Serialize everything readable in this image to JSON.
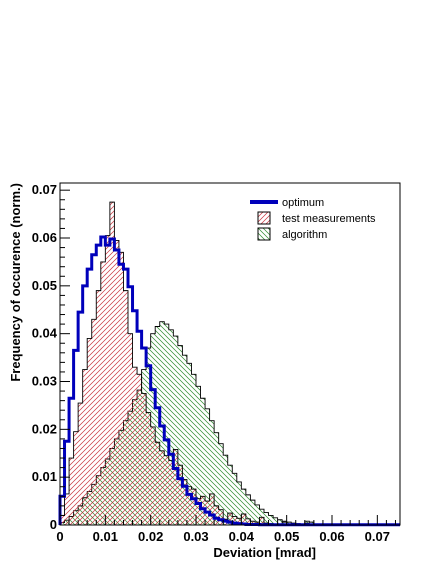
{
  "chart_data": {
    "type": "histogram",
    "xlabel": "Deviation [mrad]",
    "ylabel": "Frequency of occurence (norm.)",
    "xlim": [
      0,
      0.075
    ],
    "ylim": [
      0,
      0.0715
    ],
    "bin_width": 0.001,
    "x_ticks": [
      {
        "value": 0,
        "label": "0"
      },
      {
        "value": 0.01,
        "label": "0.01"
      },
      {
        "value": 0.02,
        "label": "0.02"
      },
      {
        "value": 0.03,
        "label": "0.03"
      },
      {
        "value": 0.04,
        "label": "0.04"
      },
      {
        "value": 0.05,
        "label": "0.05"
      },
      {
        "value": 0.06,
        "label": "0.06"
      },
      {
        "value": 0.07,
        "label": "0.07"
      }
    ],
    "y_ticks": [
      {
        "value": 0,
        "label": "0"
      },
      {
        "value": 0.01,
        "label": "0.01"
      },
      {
        "value": 0.02,
        "label": "0.02"
      },
      {
        "value": 0.03,
        "label": "0.03"
      },
      {
        "value": 0.04,
        "label": "0.04"
      },
      {
        "value": 0.05,
        "label": "0.05"
      },
      {
        "value": 0.06,
        "label": "0.06"
      },
      {
        "value": 0.07,
        "label": "0.07"
      }
    ],
    "legend": {
      "position": "top-right"
    },
    "grid": false,
    "series": [
      {
        "name": "algorithm",
        "style": "hatched-histogram",
        "hatch": "diagonal-down",
        "hatch_color": "#2e8b2e",
        "values": [
          0.0005,
          0.001,
          0.0018,
          0.003,
          0.004,
          0.0057,
          0.007,
          0.0085,
          0.0103,
          0.012,
          0.0138,
          0.016,
          0.018,
          0.0198,
          0.0218,
          0.0238,
          0.0262,
          0.0282,
          0.0325,
          0.037,
          0.04,
          0.0415,
          0.0425,
          0.042,
          0.0408,
          0.0395,
          0.0375,
          0.0355,
          0.0338,
          0.0315,
          0.029,
          0.0265,
          0.0243,
          0.0218,
          0.0193,
          0.017,
          0.0146,
          0.0125,
          0.0108,
          0.009,
          0.0075,
          0.0063,
          0.0052,
          0.0042,
          0.0033,
          0.0026,
          0.002,
          0.0015,
          0.0011,
          0.0008,
          0.0006,
          0.0004,
          0.0003,
          0.0002,
          0.0008,
          0.0006,
          0.0002,
          0.0001
        ]
      },
      {
        "name": "test measurements",
        "style": "hatched-histogram",
        "hatch": "diagonal-up",
        "hatch_color": "#c8323c",
        "values": [
          0.002,
          0.0065,
          0.014,
          0.0195,
          0.0255,
          0.0325,
          0.039,
          0.043,
          0.049,
          0.055,
          0.0605,
          0.0675,
          0.0595,
          0.057,
          0.049,
          0.04,
          0.033,
          0.0315,
          0.0275,
          0.0235,
          0.0205,
          0.0173,
          0.0155,
          0.0145,
          0.0135,
          0.0158,
          0.0125,
          0.0095,
          0.008,
          0.0075,
          0.0055,
          0.006,
          0.005,
          0.0065,
          0.004,
          0.0032,
          0.0012,
          0.0025,
          0.0018,
          0.0014,
          0.0023,
          0.0013,
          0.0008,
          0.0006,
          0.0016,
          0.0004,
          0.0003,
          0.0002,
          0.0001,
          0.0006,
          0.0001,
          0.0002,
          0.0001,
          0.0001,
          0.0004,
          0.0001,
          0.0002,
          0.0001
        ]
      },
      {
        "name": "optimum",
        "style": "step-line",
        "color": "#0000bb",
        "values": [
          0.006,
          0.0175,
          0.0265,
          0.0365,
          0.0445,
          0.05,
          0.0535,
          0.0565,
          0.0585,
          0.0602,
          0.0585,
          0.0598,
          0.0575,
          0.0545,
          0.0535,
          0.0498,
          0.0448,
          0.0405,
          0.037,
          0.0333,
          0.0283,
          0.0245,
          0.0207,
          0.0178,
          0.0148,
          0.0118,
          0.0097,
          0.0081,
          0.0064,
          0.0055,
          0.0045,
          0.0034,
          0.0027,
          0.0021,
          0.0014,
          0.0011,
          0.0008,
          0.0006,
          0.0004,
          0.0003,
          0.0002,
          0.0001,
          0.0001,
          0.0001,
          5e-05,
          5e-05,
          5e-05,
          5e-05,
          5e-05,
          5e-05,
          5e-05,
          5e-05,
          5e-05,
          5e-05,
          5e-05,
          5e-05,
          5e-05,
          5e-05,
          5e-05,
          5e-05,
          5e-05,
          5e-05,
          5e-05,
          5e-05,
          5e-05,
          5e-05,
          5e-05,
          5e-05,
          5e-05,
          5e-05,
          5e-05,
          5e-05,
          5e-05,
          5e-05,
          5e-05
        ]
      }
    ]
  }
}
